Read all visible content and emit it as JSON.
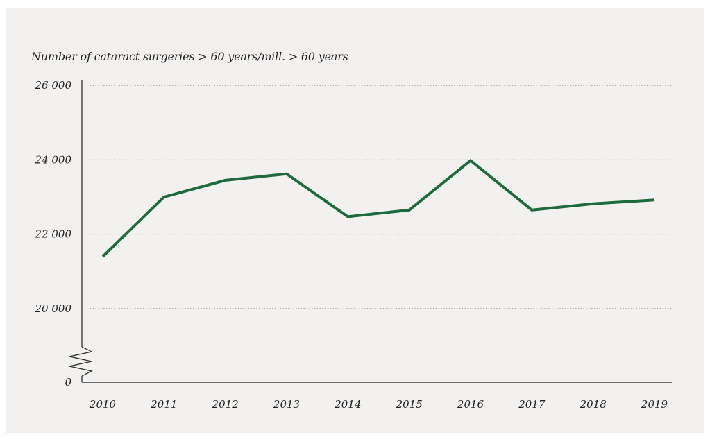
{
  "chart_data": {
    "type": "line",
    "title": "Number of cataract surgeries > 60 years/mill. > 60 years",
    "xlabel": "",
    "ylabel": "",
    "x": [
      "2010",
      "2011",
      "2012",
      "2013",
      "2014",
      "2015",
      "2016",
      "2017",
      "2018",
      "2019"
    ],
    "series": [
      {
        "values": [
          21400,
          23000,
          23450,
          23620,
          22470,
          22650,
          23980,
          22650,
          22820,
          22920
        ]
      }
    ],
    "y_ticks": [
      {
        "value": 26000,
        "label": "26 000"
      },
      {
        "value": 24000,
        "label": "24 000"
      },
      {
        "value": 22000,
        "label": "22 000"
      },
      {
        "value": 20000,
        "label": "20 000"
      },
      {
        "value": 0,
        "label": "0"
      }
    ],
    "ylim": [
      0,
      26000
    ],
    "axis_break": true,
    "grid": "horizontal-dotted",
    "line_color": "#1d6b3c",
    "grid_color": "#555555",
    "text_color": "#222222",
    "background_color": "#f2f1f0"
  }
}
